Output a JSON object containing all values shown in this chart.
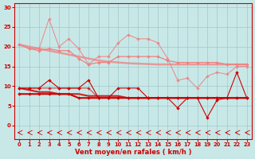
{
  "x": [
    0,
    1,
    2,
    3,
    4,
    5,
    6,
    7,
    8,
    9,
    10,
    11,
    12,
    13,
    14,
    15,
    16,
    17,
    18,
    19,
    20,
    21,
    22,
    23
  ],
  "line_rafales_max": [
    20.5,
    19.5,
    19.5,
    27,
    20,
    22,
    19.5,
    15.5,
    17.5,
    17.5,
    21,
    23,
    22,
    22,
    21,
    17,
    11.5,
    12,
    9.5,
    12.5,
    13.5,
    13,
    15,
    15
  ],
  "line_rafales_mean": [
    20.5,
    19.5,
    19.0,
    19.5,
    19.0,
    19.0,
    17.0,
    15.5,
    16.0,
    16.0,
    17.5,
    17.5,
    17.5,
    17.5,
    17.5,
    16.5,
    16.0,
    16.0,
    16.0,
    16.0,
    16.0,
    15.5,
    15.5,
    15.5
  ],
  "line_vent_max": [
    9.5,
    9.5,
    9.5,
    11.5,
    9.5,
    9.5,
    9.5,
    11.5,
    7.0,
    7.0,
    9.5,
    9.5,
    9.5,
    7.0,
    7.0,
    7.0,
    4.5,
    7.0,
    7.0,
    2.0,
    6.5,
    7.0,
    13.5,
    7.0
  ],
  "line_vent_mean": [
    8.0,
    8.0,
    8.0,
    8.0,
    8.0,
    8.0,
    7.0,
    7.0,
    7.0,
    7.0,
    7.0,
    7.0,
    7.0,
    7.0,
    7.0,
    7.0,
    7.0,
    7.0,
    7.0,
    7.0,
    7.0,
    7.0,
    7.0,
    7.0
  ],
  "line_vent_min": [
    9.5,
    9.5,
    9.5,
    9.5,
    9.5,
    9.5,
    9.5,
    9.5,
    7.0,
    7.0,
    7.0,
    7.0,
    7.0,
    7.0,
    7.0,
    7.0,
    7.0,
    7.0,
    7.0,
    7.0,
    7.0,
    7.0,
    7.0,
    7.0
  ],
  "trend_rafales": [
    20.5,
    20.0,
    19.5,
    19.0,
    18.5,
    18.0,
    17.5,
    17.0,
    16.5,
    16.2,
    16.0,
    15.8,
    15.7,
    15.6,
    15.5,
    15.5,
    15.5,
    15.5,
    15.5,
    15.5,
    15.5,
    15.5,
    15.5,
    15.5
  ],
  "trend_vent": [
    9.5,
    9.0,
    8.5,
    8.5,
    8.0,
    8.0,
    8.0,
    7.5,
    7.5,
    7.5,
    7.5,
    7.0,
    7.0,
    7.0,
    7.0,
    7.0,
    7.0,
    7.0,
    7.0,
    7.0,
    7.0,
    7.0,
    7.0,
    7.0
  ],
  "bg_color": "#c8e8e8",
  "grid_color": "#a0c8c8",
  "color_light": "#f08080",
  "color_dark": "#cc0000",
  "xlabel": "Vent moyen/en rafales ( km/h )",
  "yticks": [
    0,
    5,
    10,
    15,
    20,
    25,
    30
  ],
  "xticks": [
    0,
    1,
    2,
    3,
    4,
    5,
    6,
    7,
    8,
    9,
    10,
    11,
    12,
    13,
    14,
    15,
    16,
    17,
    18,
    19,
    20,
    21,
    22,
    23
  ]
}
